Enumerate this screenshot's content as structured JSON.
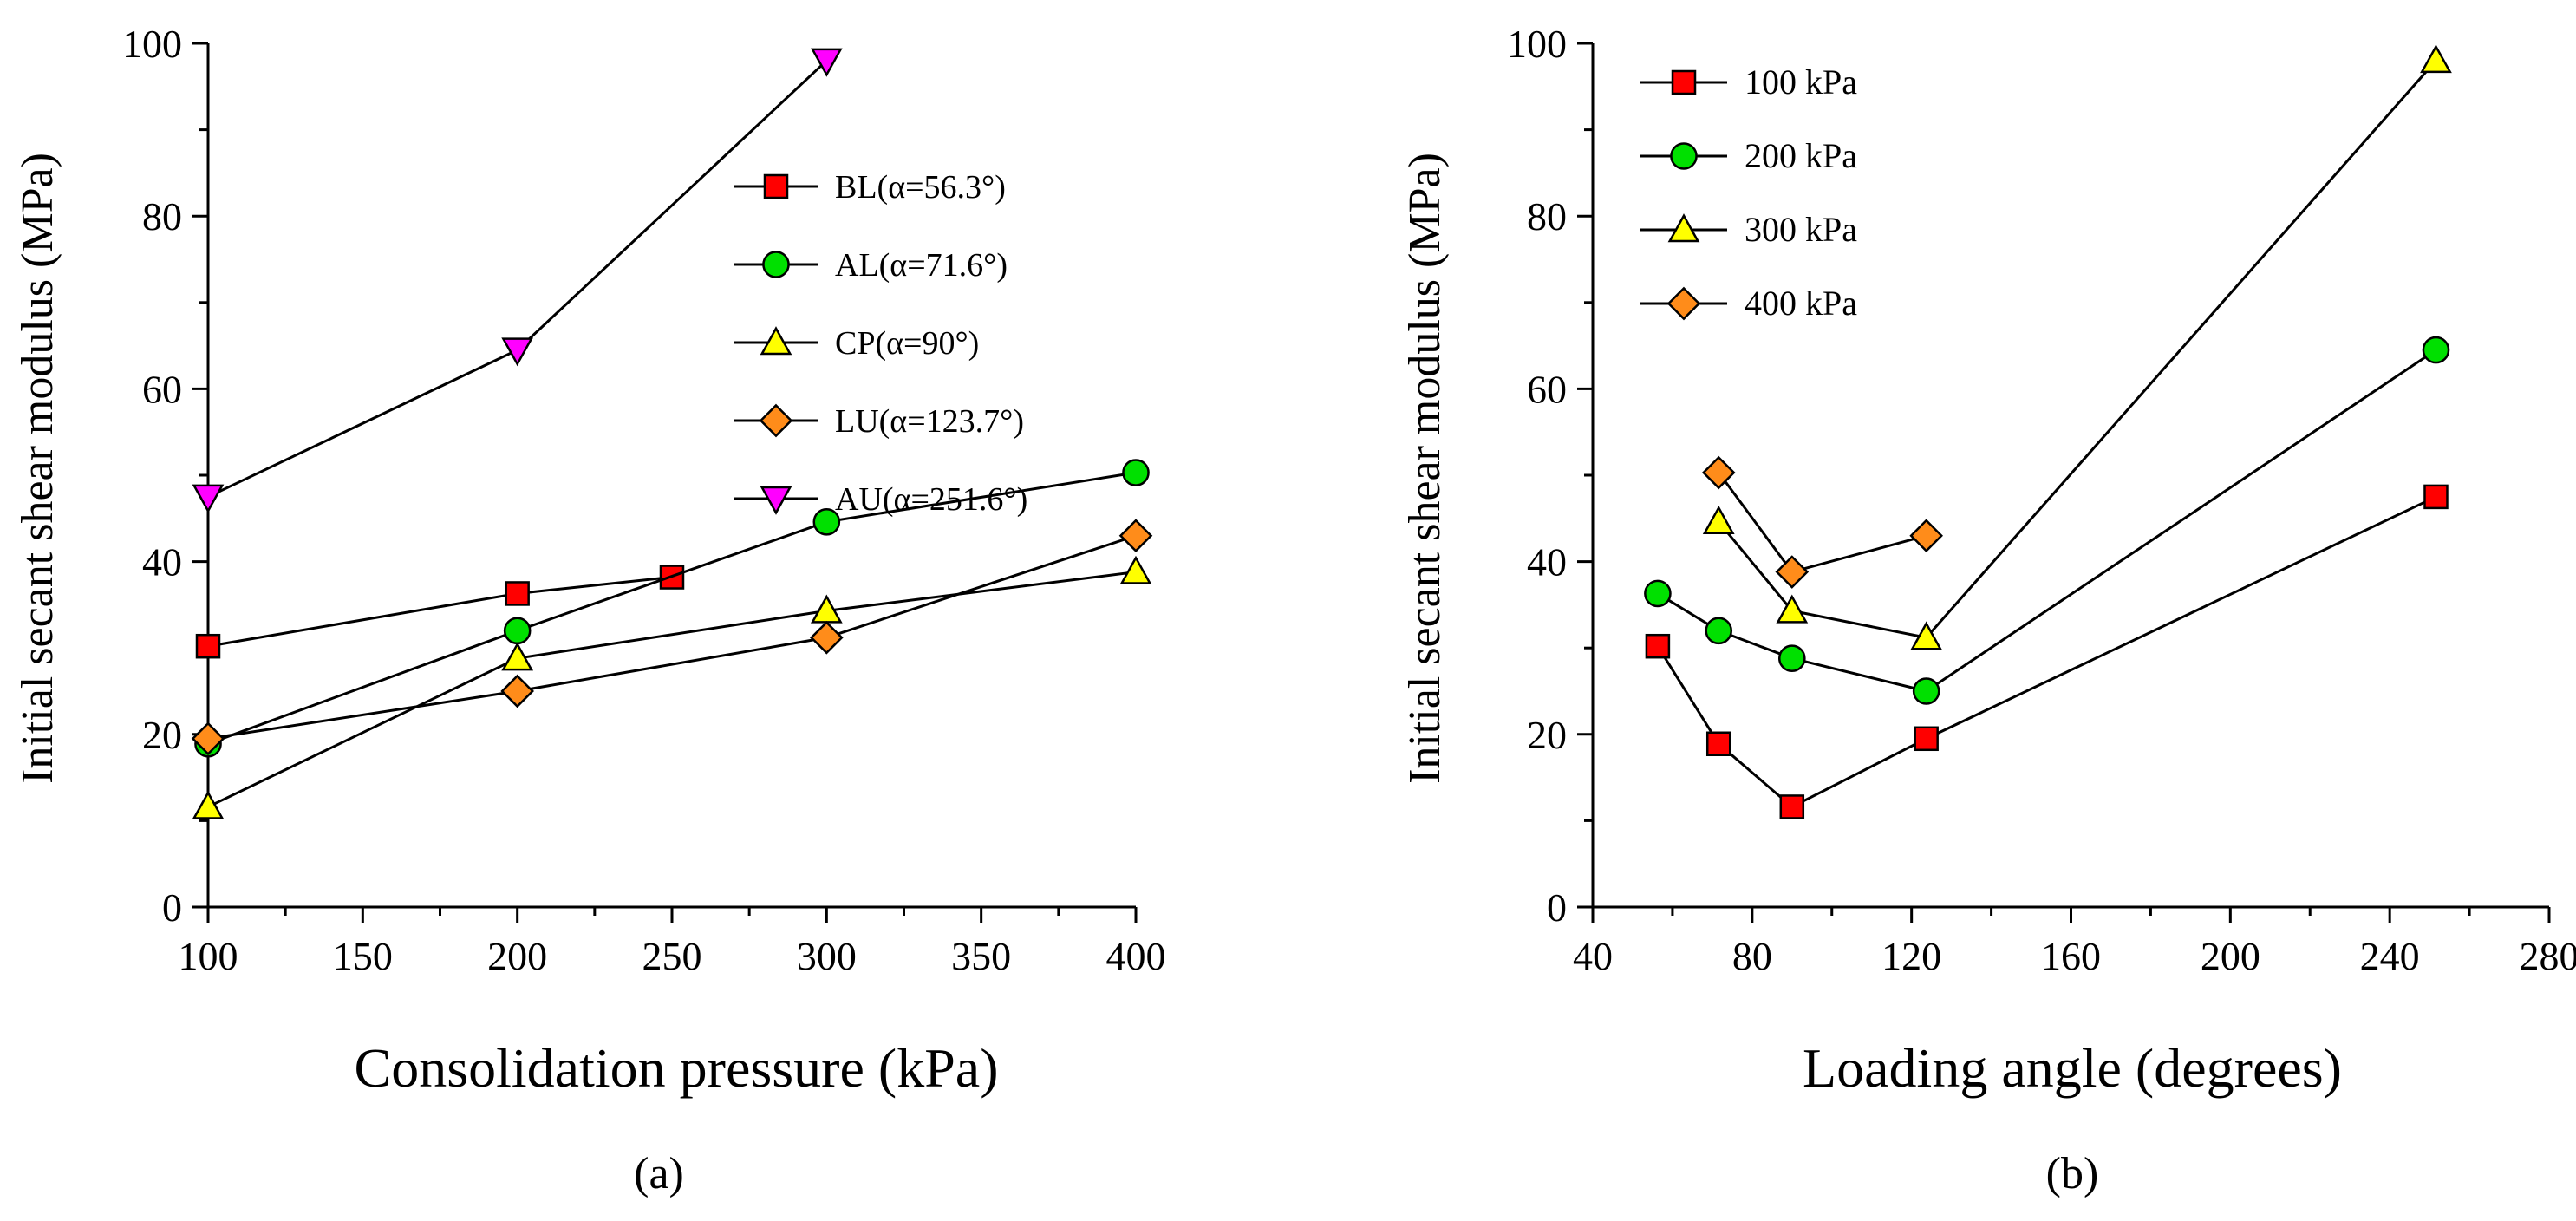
{
  "chart_data": [
    {
      "type": "line",
      "panel_label": "(a)",
      "xlabel": "Consolidation pressure (kPa)",
      "ylabel": "Initial secant shear modulus (MPa)",
      "xlim": [
        100,
        400
      ],
      "ylim": [
        0,
        100
      ],
      "xticks": [
        100,
        150,
        200,
        250,
        300,
        350,
        400
      ],
      "yticks": [
        0,
        20,
        40,
        60,
        80,
        100
      ],
      "legend_position": "top-right",
      "grid": false,
      "series": [
        {
          "name": "BL(α=56.3°)",
          "marker": "square",
          "color": "#ff0000",
          "x": [
            100,
            200,
            250
          ],
          "y": [
            30.2,
            36.3,
            38.2
          ]
        },
        {
          "name": "AL(α=71.6°)",
          "marker": "circle",
          "color": "#00e000",
          "x": [
            100,
            200,
            300,
            400
          ],
          "y": [
            18.9,
            32.0,
            44.6,
            50.3
          ]
        },
        {
          "name": "CP(α=90°)",
          "marker": "triangle-up",
          "color": "#ffff00",
          "x": [
            100,
            200,
            300,
            400
          ],
          "y": [
            11.6,
            28.8,
            34.3,
            38.8
          ]
        },
        {
          "name": "LU(α=123.7°)",
          "marker": "diamond",
          "color": "#ff8c1a",
          "x": [
            100,
            200,
            300,
            400
          ],
          "y": [
            19.5,
            25.0,
            31.2,
            43.0
          ]
        },
        {
          "name": "AU(α=251.6°)",
          "marker": "triangle-down",
          "color": "#ff00ff",
          "x": [
            100,
            200,
            300
          ],
          "y": [
            47.5,
            64.5,
            98.0
          ]
        }
      ]
    },
    {
      "type": "line",
      "panel_label": "(b)",
      "xlabel": "Loading angle (degrees)",
      "ylabel": "Initial secant shear modulus (MPa)",
      "xlim": [
        40,
        280
      ],
      "ylim": [
        0,
        100
      ],
      "xticks": [
        40,
        80,
        120,
        160,
        200,
        240,
        280
      ],
      "yticks": [
        0,
        20,
        40,
        60,
        80,
        100
      ],
      "legend_position": "top-left",
      "grid": false,
      "series": [
        {
          "name": "100 kPa",
          "marker": "square",
          "color": "#ff0000",
          "x": [
            56.3,
            71.6,
            90,
            123.7,
            251.6
          ],
          "y": [
            30.2,
            18.9,
            11.6,
            19.5,
            47.5
          ]
        },
        {
          "name": "200 kPa",
          "marker": "circle",
          "color": "#00e000",
          "x": [
            56.3,
            71.6,
            90,
            123.7,
            251.6
          ],
          "y": [
            36.3,
            32.0,
            28.8,
            25.0,
            64.5
          ]
        },
        {
          "name": "300 kPa",
          "marker": "triangle-up",
          "color": "#ffff00",
          "x": [
            71.6,
            90,
            123.7,
            251.6
          ],
          "y": [
            44.6,
            34.3,
            31.2,
            98.0
          ]
        },
        {
          "name": "400 kPa",
          "marker": "diamond",
          "color": "#ff8c1a",
          "x": [
            71.6,
            90,
            123.7
          ],
          "y": [
            50.3,
            38.8,
            43.0
          ]
        }
      ]
    }
  ]
}
